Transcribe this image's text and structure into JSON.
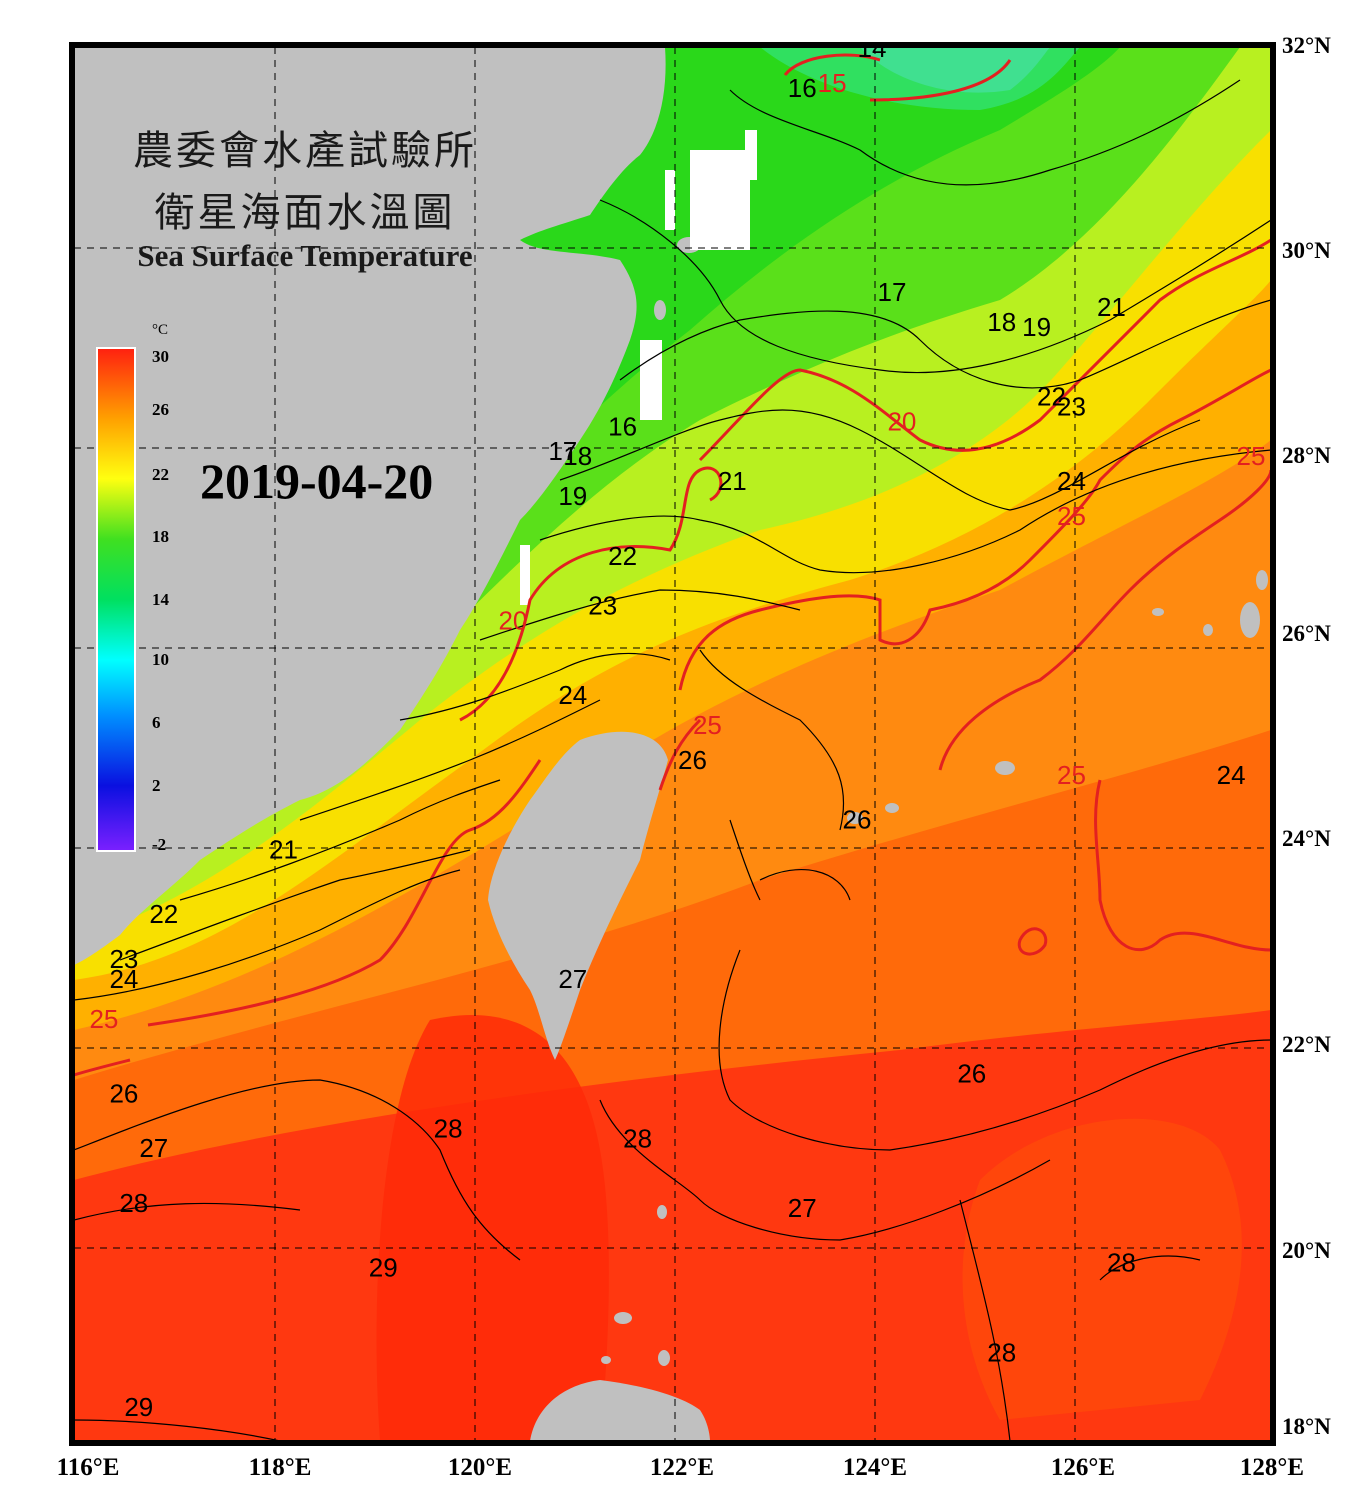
{
  "title_zh_1": "農委會水產試驗所",
  "title_zh_2": "衛星海面水溫圖",
  "title_en": "Sea Surface Temperature",
  "date": "2019-04-20",
  "colorbar": {
    "unit": "°C",
    "ticks": [
      "30",
      "26",
      "22",
      "18",
      "14",
      "10",
      "6",
      "2",
      "-2"
    ],
    "range": [
      -2,
      30
    ]
  },
  "axes": {
    "lat_labels": [
      "32°N",
      "30°N",
      "28°N",
      "26°N",
      "24°N",
      "22°N",
      "20°N",
      "18°N"
    ],
    "lon_labels": [
      "116°E",
      "118°E",
      "120°E",
      "122°E",
      "124°E",
      "126°E",
      "128°E"
    ],
    "lat_range": [
      18,
      32
    ],
    "lon_range": [
      116,
      128
    ]
  },
  "contour_labels": [
    {
      "text": "14",
      "lon": 124.0,
      "lat": 31.9
    },
    {
      "text": "15",
      "lon": 123.6,
      "lat": 31.55,
      "color": "#e32020"
    },
    {
      "text": "16",
      "lon": 123.3,
      "lat": 31.5
    },
    {
      "text": "17",
      "lon": 124.2,
      "lat": 29.45
    },
    {
      "text": "18",
      "lon": 125.3,
      "lat": 29.15
    },
    {
      "text": "19",
      "lon": 125.65,
      "lat": 29.1
    },
    {
      "text": "21",
      "lon": 126.4,
      "lat": 29.3
    },
    {
      "text": "20",
      "lon": 124.3,
      "lat": 28.15,
      "color": "#e32020"
    },
    {
      "text": "22",
      "lon": 125.8,
      "lat": 28.4
    },
    {
      "text": "23",
      "lon": 126.0,
      "lat": 28.3
    },
    {
      "text": "16",
      "lon": 121.5,
      "lat": 28.1
    },
    {
      "text": "17",
      "lon": 120.9,
      "lat": 27.85
    },
    {
      "text": "18",
      "lon": 121.05,
      "lat": 27.8
    },
    {
      "text": "19",
      "lon": 121.0,
      "lat": 27.4
    },
    {
      "text": "21",
      "lon": 122.6,
      "lat": 27.55
    },
    {
      "text": "24",
      "lon": 126.0,
      "lat": 27.55
    },
    {
      "text": "25",
      "lon": 126.0,
      "lat": 27.2,
      "color": "#e32020"
    },
    {
      "text": "25",
      "lon": 127.8,
      "lat": 27.8,
      "color": "#e32020"
    },
    {
      "text": "22",
      "lon": 121.5,
      "lat": 26.8
    },
    {
      "text": "23",
      "lon": 121.3,
      "lat": 26.3
    },
    {
      "text": "20",
      "lon": 120.4,
      "lat": 26.15,
      "color": "#e32020"
    },
    {
      "text": "24",
      "lon": 121.0,
      "lat": 25.4
    },
    {
      "text": "25",
      "lon": 122.35,
      "lat": 25.1,
      "color": "#e32020"
    },
    {
      "text": "26",
      "lon": 122.2,
      "lat": 24.75
    },
    {
      "text": "25",
      "lon": 126.0,
      "lat": 24.6,
      "color": "#e32020"
    },
    {
      "text": "24",
      "lon": 127.6,
      "lat": 24.6
    },
    {
      "text": "26",
      "lon": 123.85,
      "lat": 24.15
    },
    {
      "text": "21",
      "lon": 118.1,
      "lat": 23.85
    },
    {
      "text": "22",
      "lon": 116.9,
      "lat": 23.2
    },
    {
      "text": "23",
      "lon": 116.5,
      "lat": 22.75
    },
    {
      "text": "24",
      "lon": 116.5,
      "lat": 22.55
    },
    {
      "text": "25",
      "lon": 116.3,
      "lat": 22.15,
      "color": "#e32020"
    },
    {
      "text": "27",
      "lon": 121.0,
      "lat": 22.55
    },
    {
      "text": "26",
      "lon": 116.5,
      "lat": 21.4
    },
    {
      "text": "26",
      "lon": 125.0,
      "lat": 21.6
    },
    {
      "text": "28",
      "lon": 119.75,
      "lat": 21.05
    },
    {
      "text": "28",
      "lon": 121.65,
      "lat": 20.95
    },
    {
      "text": "27",
      "lon": 116.8,
      "lat": 20.85
    },
    {
      "text": "28",
      "lon": 116.6,
      "lat": 20.3
    },
    {
      "text": "27",
      "lon": 123.3,
      "lat": 20.25
    },
    {
      "text": "29",
      "lon": 119.1,
      "lat": 19.65
    },
    {
      "text": "28",
      "lon": 126.5,
      "lat": 19.7
    },
    {
      "text": "28",
      "lon": 125.3,
      "lat": 18.8
    },
    {
      "text": "29",
      "lon": 116.65,
      "lat": 18.25
    }
  ],
  "colors": {
    "land": "#c0c0c0",
    "frame": "#000000",
    "contour_major": "#e32020",
    "contour_minor": "#000000"
  }
}
